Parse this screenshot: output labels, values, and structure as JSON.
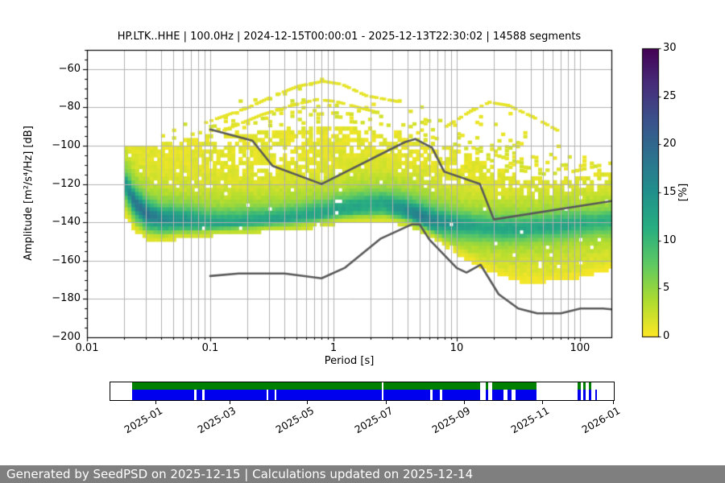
{
  "chart_data": {
    "type": "heatmap",
    "title": "HP.LTK..HHE | 100.0Hz | 2024-12-15T00:00:01 - 2025-12-13T22:30:02 | 14588 segments",
    "xlabel": "Period [s]",
    "ylabel": "Amplitude [m²/s⁴/Hz] [dB]",
    "x_scale": "log",
    "xlim": [
      0.01,
      180
    ],
    "ylim": [
      -200,
      -50
    ],
    "grid": true,
    "xticks": {
      "values": [
        0.01,
        0.1,
        1,
        10,
        100
      ],
      "labels": [
        "0.01",
        "0.1",
        "1",
        "10",
        "100"
      ]
    },
    "yticks": {
      "values": [
        -60,
        -80,
        -100,
        -120,
        -140,
        -160,
        -180,
        -200
      ],
      "labels": [
        "−60",
        "−80",
        "−100",
        "−120",
        "−140",
        "−160",
        "−180",
        "−200"
      ]
    },
    "colorbar": {
      "label": "[%]",
      "min": 0,
      "max": 30,
      "ticks": [
        "0",
        "5",
        "10",
        "15",
        "20",
        "25",
        "30"
      ],
      "tick_values": [
        0,
        5,
        10,
        15,
        20,
        25,
        30
      ],
      "colormap": "viridis reversed (0% = yellow, 30% = dark purple)",
      "viridis_stops": [
        "#440154",
        "#472d7b",
        "#3b528b",
        "#2c728e",
        "#21918c",
        "#28ae80",
        "#5ec962",
        "#addc30",
        "#fde725"
      ]
    },
    "density_profile": {
      "note": "PPSD probability columns: [log10(period s), top dB of dense mass, bottom dB, mode dB (green ridge), peak probability %, top dB of scattered outliers]",
      "columns": [
        [
          -1.7,
          -100,
          -138,
          -122,
          11,
          -93
        ],
        [
          -1.62,
          -101,
          -146,
          -131,
          14,
          -94
        ],
        [
          -1.52,
          -101,
          -150,
          -137,
          14,
          -95
        ],
        [
          -1.4,
          -100,
          -151,
          -139,
          12,
          -92
        ],
        [
          -1.3,
          -99,
          -150,
          -139,
          11,
          -90
        ],
        [
          -1.15,
          -97,
          -149,
          -140,
          10,
          -88
        ],
        [
          -1.0,
          -95,
          -148,
          -141,
          9,
          -86
        ],
        [
          -0.8,
          -94,
          -147,
          -141,
          9,
          -76
        ],
        [
          -0.6,
          -93,
          -146,
          -140,
          9,
          -70
        ],
        [
          -0.4,
          -92,
          -145,
          -139,
          9,
          -68
        ],
        [
          -0.2,
          -91,
          -144,
          -137,
          9,
          -66.5
        ],
        [
          -0.1,
          -90.5,
          -143,
          -136,
          9,
          -66
        ],
        [
          0.0,
          -90,
          -142,
          -134,
          9,
          -70
        ],
        [
          0.2,
          -91,
          -141,
          -132,
          9,
          -75
        ],
        [
          0.4,
          -92,
          -141,
          -131,
          9,
          -77
        ],
        [
          0.6,
          -95,
          -143,
          -135,
          12,
          -78
        ],
        [
          0.7,
          -97,
          -146,
          -138,
          13,
          -80
        ],
        [
          0.8,
          -99,
          -150,
          -140,
          12,
          -82
        ],
        [
          1.0,
          -103,
          -158,
          -142,
          10,
          -84
        ],
        [
          1.15,
          -107,
          -163,
          -143,
          9,
          -79
        ],
        [
          1.3,
          -112,
          -168,
          -144,
          9,
          -77
        ],
        [
          1.5,
          -116,
          -172,
          -144,
          9,
          -86
        ],
        [
          1.7,
          -118,
          -172,
          -143,
          9,
          -96
        ],
        [
          1.9,
          -117,
          -171,
          -142,
          9,
          -101
        ],
        [
          2.1,
          -114,
          -168,
          -141,
          8,
          -104
        ],
        [
          2.255,
          -112,
          -165,
          -140,
          8,
          -106
        ]
      ]
    },
    "outlier_arcs": [
      [
        [
          -1.05,
          -88
        ],
        [
          -0.7,
          -80
        ],
        [
          -0.5,
          -74
        ],
        [
          -0.3,
          -69
        ],
        [
          -0.1,
          -66.5
        ],
        [
          0.05,
          -68
        ],
        [
          0.25,
          -74
        ],
        [
          0.5,
          -77
        ]
      ],
      [
        [
          -0.9,
          -92
        ],
        [
          -0.6,
          -84
        ],
        [
          -0.35,
          -79
        ],
        [
          -0.15,
          -76
        ],
        [
          0.0,
          -77
        ],
        [
          0.3,
          -82
        ]
      ],
      [
        [
          0.9,
          -90
        ],
        [
          1.1,
          -82
        ],
        [
          1.25,
          -77.5
        ],
        [
          1.4,
          -79
        ],
        [
          1.6,
          -85
        ],
        [
          1.8,
          -92
        ]
      ]
    ],
    "noise_models": {
      "color": "#595959",
      "high_noise_model": [
        [
          0.1,
          -91.5
        ],
        [
          0.22,
          -97.4
        ],
        [
          0.32,
          -110.5
        ],
        [
          0.8,
          -120.0
        ],
        [
          3.8,
          -98.1
        ],
        [
          4.6,
          -96.5
        ],
        [
          6.3,
          -101.0
        ],
        [
          7.9,
          -113.5
        ],
        [
          15.4,
          -120.0
        ],
        [
          20.0,
          -138.5
        ],
        [
          180,
          -128.9
        ]
      ],
      "low_noise_model": [
        [
          0.1,
          -168.0
        ],
        [
          0.17,
          -166.7
        ],
        [
          0.4,
          -166.7
        ],
        [
          0.8,
          -169.2
        ],
        [
          1.24,
          -163.7
        ],
        [
          2.4,
          -148.6
        ],
        [
          4.3,
          -141.1
        ],
        [
          5.0,
          -141.1
        ],
        [
          6.0,
          -149.0
        ],
        [
          10.0,
          -163.8
        ],
        [
          12.0,
          -166.2
        ],
        [
          15.6,
          -162.1
        ],
        [
          21.9,
          -177.5
        ],
        [
          31.6,
          -185.0
        ],
        [
          45.0,
          -187.5
        ],
        [
          70.0,
          -187.5
        ],
        [
          101.0,
          -185.0
        ],
        [
          154.0,
          -185.0
        ],
        [
          180,
          -185.4
        ]
      ]
    }
  },
  "availability": {
    "green_color": "#008000",
    "blue_color": "#0000ee",
    "green_segments": [
      [
        0.043,
        0.539
      ],
      [
        0.542,
        0.735
      ],
      [
        0.745,
        0.751
      ],
      [
        0.759,
        0.847
      ],
      [
        0.928,
        0.935
      ],
      [
        0.939,
        0.944
      ],
      [
        0.95,
        0.955
      ]
    ],
    "blue_segments": [
      [
        0.043,
        0.167
      ],
      [
        0.171,
        0.183
      ],
      [
        0.187,
        0.311
      ],
      [
        0.314,
        0.327
      ],
      [
        0.33,
        0.539
      ],
      [
        0.542,
        0.635
      ],
      [
        0.64,
        0.654
      ],
      [
        0.659,
        0.735
      ],
      [
        0.745,
        0.751
      ],
      [
        0.759,
        0.781
      ],
      [
        0.788,
        0.797
      ],
      [
        0.804,
        0.847
      ],
      [
        0.928,
        0.935
      ],
      [
        0.939,
        0.944
      ],
      [
        0.95,
        0.955
      ],
      [
        0.963,
        0.966
      ]
    ],
    "date_ticks": {
      "labels": [
        "2025-01",
        "2025-03",
        "2025-05",
        "2025-07",
        "2025-09",
        "2025-11",
        "2026-01"
      ],
      "positions": [
        0.0909,
        0.2376,
        0.3923,
        0.5487,
        0.7033,
        0.8596,
        1.0
      ]
    }
  },
  "footer": {
    "text": "Generated by SeedPSD on 2025-12-15 | Calculations updated on 2025-12-14",
    "background": "#7f7f7f",
    "text_color": "#ffffff"
  }
}
